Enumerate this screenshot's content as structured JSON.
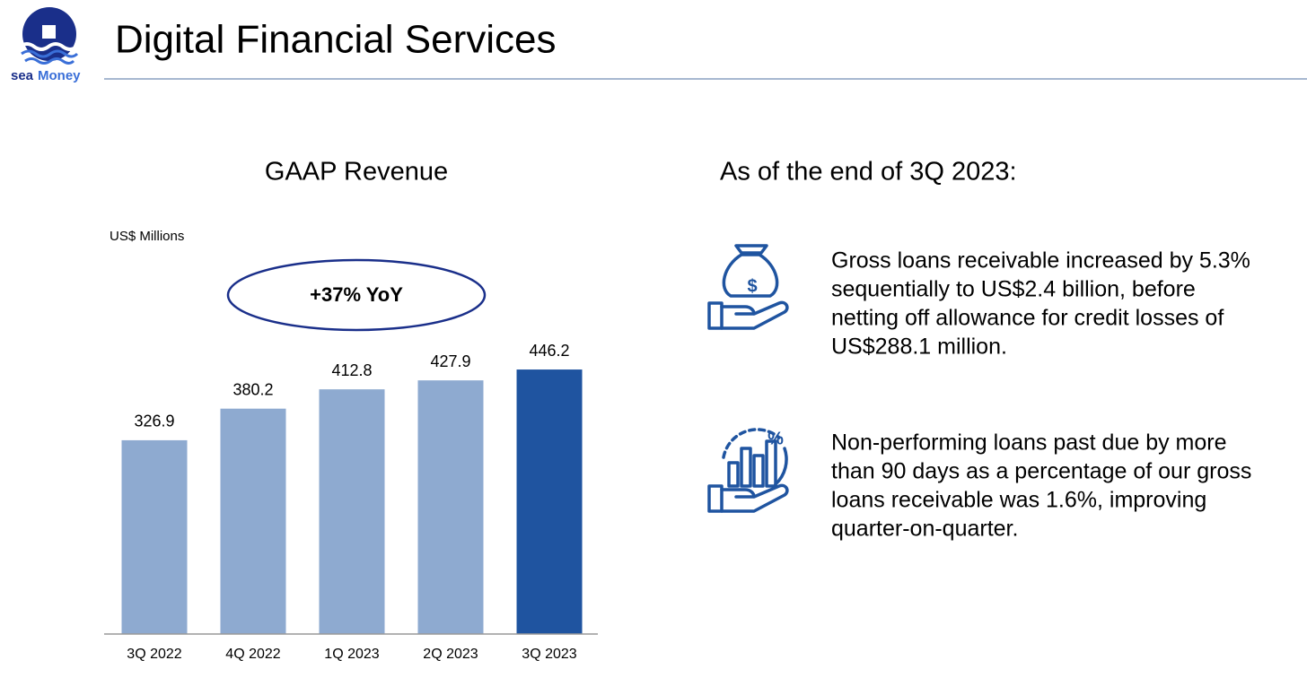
{
  "header": {
    "title": "Digital Financial Services",
    "logo_text_1": "sea",
    "logo_text_2": "Money"
  },
  "chart_data": {
    "type": "bar",
    "title": "GAAP Revenue",
    "unit_label": "US$ Millions",
    "annotation": "+37% YoY",
    "categories": [
      "3Q 2022",
      "4Q 2022",
      "1Q 2023",
      "2Q 2023",
      "3Q 2023"
    ],
    "values": [
      326.9,
      380.2,
      412.8,
      427.9,
      446.2
    ],
    "colors": [
      "#8eaad0",
      "#8eaad0",
      "#8eaad0",
      "#8eaad0",
      "#1f54a0"
    ],
    "ylim": [
      0,
      500
    ]
  },
  "highlights": {
    "title": "As of the end of 3Q 2023:",
    "bullets": [
      {
        "lines": [
          "Gross loans receivable increased by 5.3%",
          "sequentially to US$2.4 billion, before",
          "netting off allowance for credit losses of",
          "US$288.1 million."
        ]
      },
      {
        "lines": [
          "Non-performing loans past due by more",
          "than 90 days as a percentage of our gross",
          "loans receivable was 1.6%, improving",
          "quarter-on-quarter."
        ]
      }
    ]
  }
}
